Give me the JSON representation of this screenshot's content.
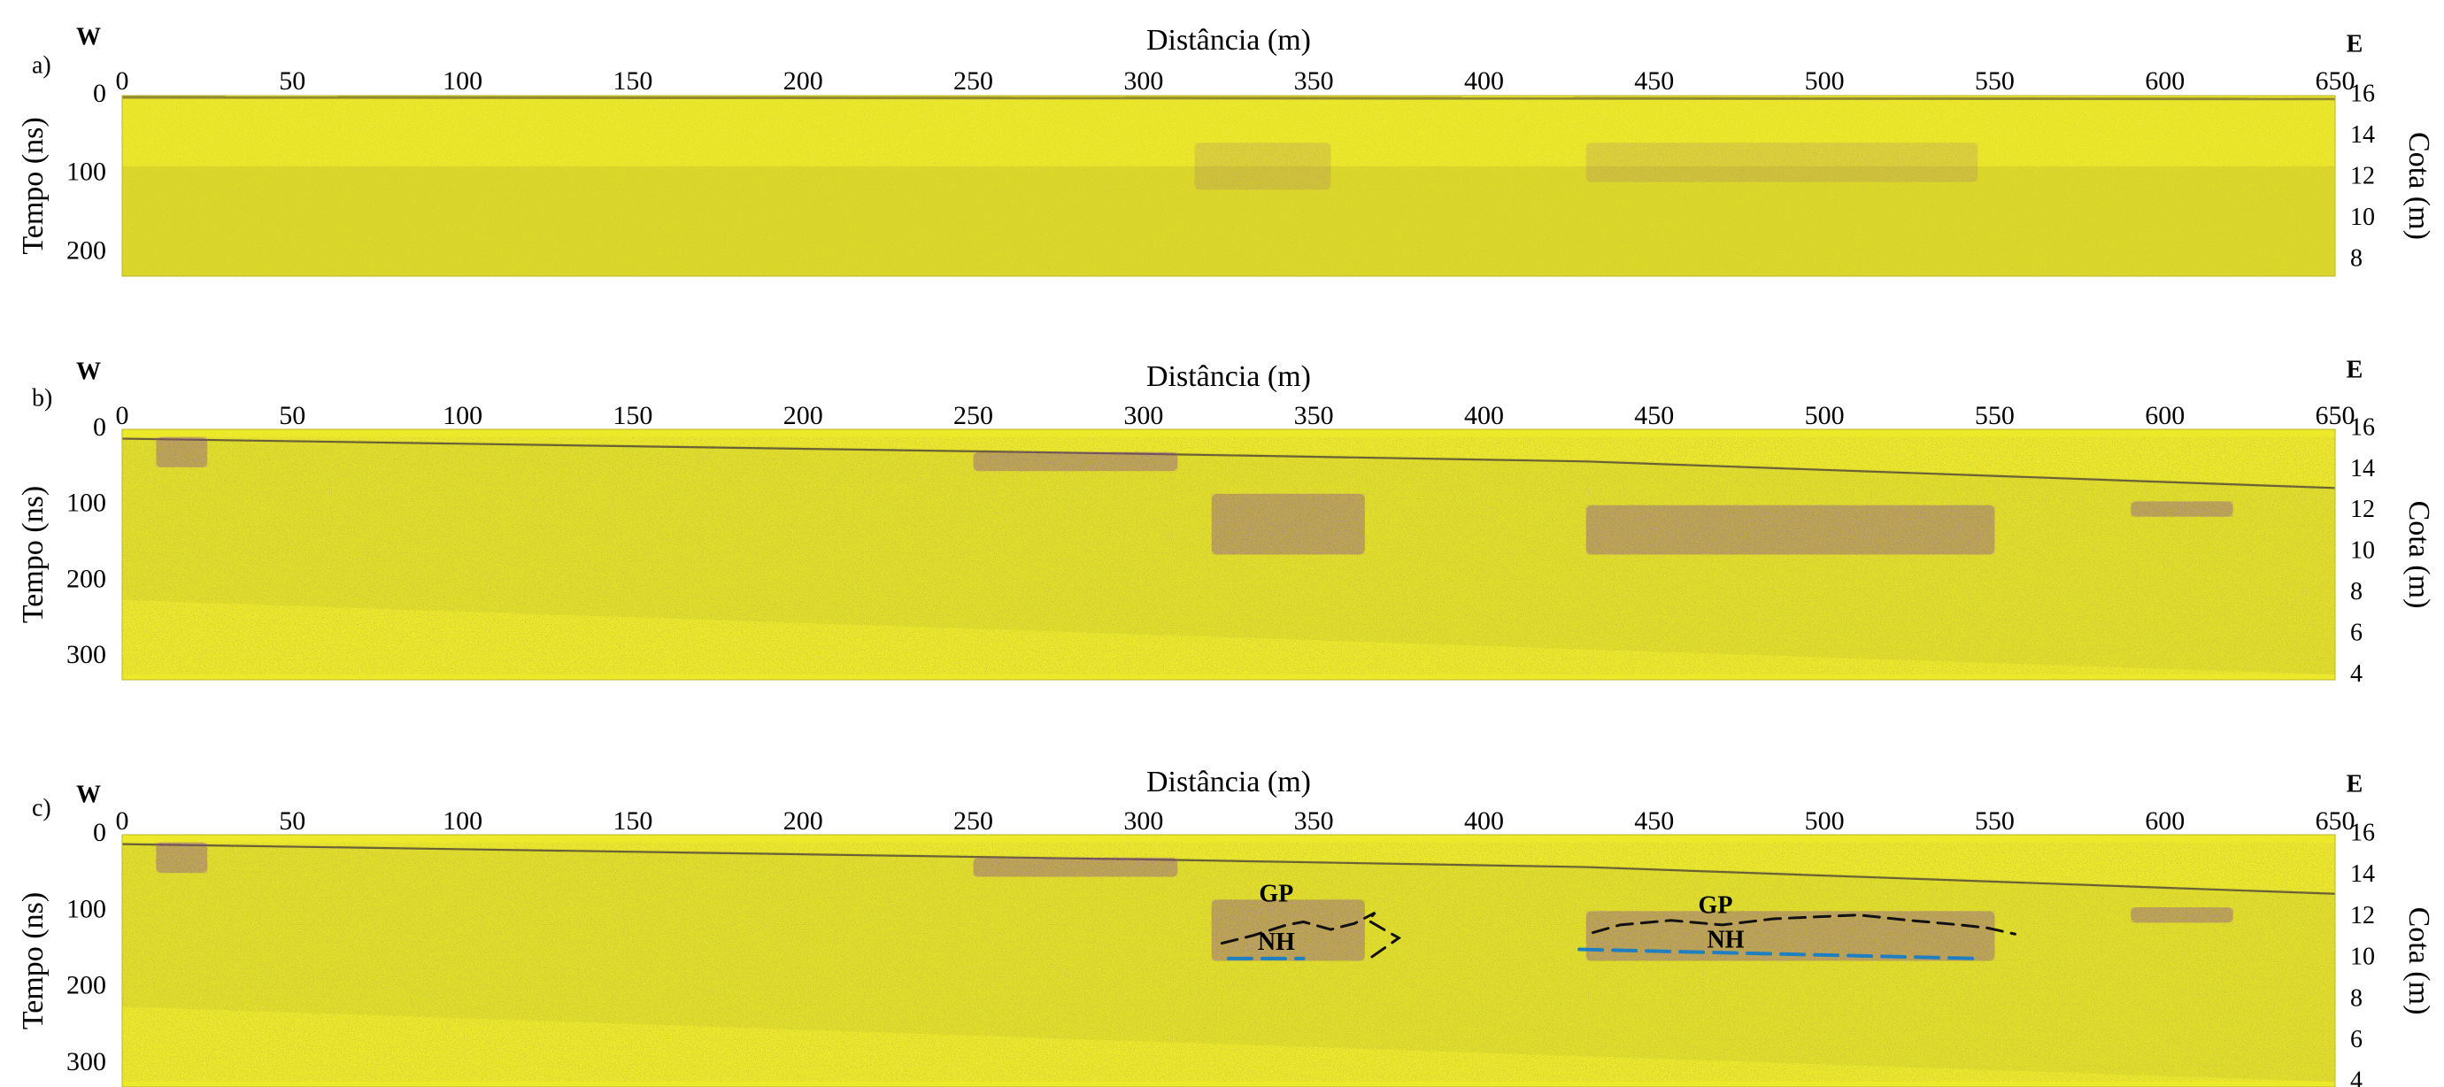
{
  "chart_data": [
    {
      "type": "heatmap",
      "panel": "a)",
      "west": "W",
      "east": "E",
      "xlabel": "Distância (m)",
      "ylabel_left": "Tempo (ns)",
      "ylabel_right": "Cota (m)",
      "xlim": [
        0,
        650
      ],
      "x_ticks": [
        0,
        50,
        100,
        150,
        200,
        250,
        300,
        350,
        400,
        450,
        500,
        550,
        600,
        650
      ],
      "y_left_lim": [
        0,
        230
      ],
      "y_left_ticks": [
        0,
        100,
        200
      ],
      "y_right_ticks": [
        16,
        14,
        12,
        10,
        8
      ],
      "right_axis_map": {
        "tempo_ns": [
          0,
          223
        ],
        "cota_m": [
          16,
          7.5
        ]
      },
      "colors": {
        "background": "#ece82a",
        "low": "#cfcb2a",
        "reflector": "#6a2a8c"
      },
      "features": [
        {
          "kind": "surface",
          "x": [
            0,
            650
          ],
          "tempo_ns": [
            0,
            2
          ]
        },
        {
          "kind": "faint_band",
          "tempo_ns_from": 90
        },
        {
          "kind": "faint_reflector",
          "x": [
            315,
            355
          ],
          "tempo_ns": [
            60,
            120
          ]
        },
        {
          "kind": "faint_reflector",
          "x": [
            430,
            545
          ],
          "tempo_ns": [
            60,
            110
          ]
        }
      ]
    },
    {
      "type": "heatmap",
      "panel": "b)",
      "west": "W",
      "east": "E",
      "xlabel": "Distância (m)",
      "ylabel_left": "Tempo (ns)",
      "ylabel_right": "Cota (m)",
      "xlim": [
        0,
        650
      ],
      "x_ticks": [
        0,
        50,
        100,
        150,
        200,
        250,
        300,
        350,
        400,
        450,
        500,
        550,
        600,
        650
      ],
      "y_left_lim": [
        0,
        330
      ],
      "y_left_ticks": [
        0,
        100,
        200,
        300
      ],
      "y_right_ticks": [
        16,
        14,
        12,
        10,
        8,
        6,
        4
      ],
      "right_axis_map": {
        "tempo_ns": [
          0,
          330
        ],
        "cota_m": [
          16,
          3.8
        ]
      },
      "colors": {
        "background": "#ece82a",
        "low": "#cfcb2a",
        "reflector": "#6a2a8c"
      },
      "features": [
        {
          "kind": "surface",
          "x": [
            0,
            300,
            430,
            650
          ],
          "tempo_ns": [
            10,
            30,
            40,
            75
          ]
        },
        {
          "kind": "data_floor",
          "x": [
            0,
            650
          ],
          "tempo_ns": [
            225,
            330
          ]
        },
        {
          "kind": "reflector",
          "x": [
            10,
            25
          ],
          "tempo_ns": [
            10,
            50
          ]
        },
        {
          "kind": "reflector",
          "x": [
            250,
            310
          ],
          "tempo_ns": [
            30,
            55
          ]
        },
        {
          "kind": "reflector",
          "x": [
            320,
            365
          ],
          "tempo_ns": [
            85,
            165
          ]
        },
        {
          "kind": "reflector",
          "x": [
            430,
            550
          ],
          "tempo_ns": [
            100,
            165
          ]
        },
        {
          "kind": "reflector",
          "x": [
            590,
            620
          ],
          "tempo_ns": [
            95,
            115
          ]
        }
      ]
    },
    {
      "type": "heatmap",
      "panel": "c)",
      "west": "W",
      "east": "E",
      "xlabel": "Distância (m)",
      "ylabel_left": "Tempo (ns)",
      "ylabel_right": "Cota (m)",
      "xlim": [
        0,
        650
      ],
      "x_ticks": [
        0,
        50,
        100,
        150,
        200,
        250,
        300,
        350,
        400,
        450,
        500,
        550,
        600,
        650
      ],
      "y_left_lim": [
        0,
        330
      ],
      "y_left_ticks": [
        0,
        100,
        200,
        300
      ],
      "y_right_ticks": [
        16,
        14,
        12,
        10,
        8,
        6,
        4
      ],
      "right_axis_map": {
        "tempo_ns": [
          0,
          330
        ],
        "cota_m": [
          16,
          3.8
        ]
      },
      "colors": {
        "background": "#ece82a",
        "low": "#cfcb2a",
        "reflector": "#6a2a8c",
        "gp_line": "#111111",
        "nh_line": "#1f7fc0"
      },
      "features": [
        {
          "kind": "surface",
          "x": [
            0,
            300,
            430,
            650
          ],
          "tempo_ns": [
            10,
            30,
            40,
            75
          ]
        },
        {
          "kind": "data_floor",
          "x": [
            0,
            650
          ],
          "tempo_ns": [
            225,
            330
          ]
        },
        {
          "kind": "reflector",
          "x": [
            10,
            25
          ],
          "tempo_ns": [
            10,
            50
          ]
        },
        {
          "kind": "reflector",
          "x": [
            250,
            310
          ],
          "tempo_ns": [
            30,
            55
          ]
        },
        {
          "kind": "reflector",
          "x": [
            320,
            365
          ],
          "tempo_ns": [
            85,
            165
          ]
        },
        {
          "kind": "reflector",
          "x": [
            430,
            550
          ],
          "tempo_ns": [
            100,
            165
          ]
        },
        {
          "kind": "reflector",
          "x": [
            590,
            620
          ],
          "tempo_ns": [
            95,
            115
          ]
        }
      ],
      "annotations": [
        {
          "label": "GP",
          "x": 339,
          "tempo_ns": 80
        },
        {
          "label": "NH",
          "x": 339,
          "tempo_ns": 143
        },
        {
          "label": "GP",
          "x": 468,
          "tempo_ns": 95
        },
        {
          "label": "NH",
          "x": 471,
          "tempo_ns": 140
        }
      ],
      "lines": [
        {
          "name": "GP",
          "style": "dashed",
          "color": "#111111",
          "x": [
            323,
            332,
            342,
            347,
            355,
            362,
            368,
            366,
            371,
            375,
            367
          ],
          "tempo_ns": [
            142,
            132,
            118,
            114,
            124,
            116,
            102,
            112,
            125,
            135,
            160
          ]
        },
        {
          "name": "GP",
          "style": "dashed",
          "color": "#111111",
          "x": [
            432,
            440,
            455,
            470,
            485,
            495,
            510,
            525,
            540,
            548,
            556
          ],
          "tempo_ns": [
            128,
            118,
            112,
            118,
            110,
            108,
            105,
            112,
            118,
            122,
            130
          ]
        },
        {
          "name": "NH",
          "style": "dashed",
          "color": "#1f7fc0",
          "x": [
            325,
            347
          ],
          "tempo_ns": [
            162,
            162
          ]
        },
        {
          "name": "NH",
          "style": "dashed",
          "color": "#1f7fc0",
          "x": [
            428,
            545
          ],
          "tempo_ns": [
            150,
            162
          ]
        }
      ]
    }
  ]
}
